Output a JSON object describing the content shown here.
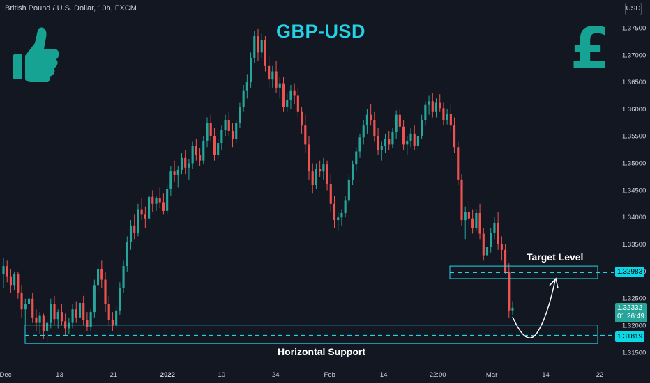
{
  "header": {
    "symbol": "British Pound / U.S. Dollar, 10h, FXCM",
    "currency": "USD"
  },
  "title": "GBP-USD",
  "colors": {
    "background": "#131722",
    "up": "#26a69a",
    "down": "#ef5350",
    "accent": "#22d3e6",
    "logo": "#16a394",
    "arrow": "#ffffff"
  },
  "icons": {
    "thumb": "thumbs-up-icon",
    "pound": "pound-sign-icon"
  },
  "logo_text": "£",
  "annotations": {
    "target_label": "Target Level",
    "support_label": "Horizontal Support"
  },
  "price_tags": {
    "target": "1.32983",
    "support": "1.31819",
    "current": "1.32332",
    "countdown": "01:26:49"
  },
  "chart_data": {
    "type": "candlestick",
    "timeframe": "10h",
    "y_ticks": [
      "1.37500",
      "1.37000",
      "1.36500",
      "1.36000",
      "1.35500",
      "1.35000",
      "1.34500",
      "1.34000",
      "1.33500",
      "1.33000",
      "1.32500",
      "1.32000",
      "1.31500"
    ],
    "ylim": [
      1.3135,
      1.3766
    ],
    "x_ticks": [
      "Dec",
      "13",
      "21",
      "2022",
      "10",
      "24",
      "Feb",
      "14",
      "22:00",
      "Mar",
      "14",
      "22"
    ],
    "levels": [
      {
        "name": "Target Level",
        "price": 1.32983,
        "zone": [
          1.3287,
          1.331
        ]
      },
      {
        "name": "Horizontal Support",
        "price": 1.31819,
        "zone": [
          1.3167,
          1.3201
        ]
      }
    ],
    "current_price": 1.32332,
    "candles": [
      [
        1.3295,
        1.3325,
        1.327,
        1.331
      ],
      [
        1.331,
        1.332,
        1.328,
        1.329
      ],
      [
        1.329,
        1.3305,
        1.326,
        1.3275
      ],
      [
        1.3275,
        1.33,
        1.3265,
        1.3295
      ],
      [
        1.3295,
        1.33,
        1.325,
        1.326
      ],
      [
        1.326,
        1.3275,
        1.3215,
        1.323
      ],
      [
        1.323,
        1.325,
        1.32,
        1.324
      ],
      [
        1.324,
        1.326,
        1.3225,
        1.325
      ],
      [
        1.325,
        1.326,
        1.3205,
        1.3215
      ],
      [
        1.3215,
        1.323,
        1.319,
        1.3205
      ],
      [
        1.3205,
        1.3225,
        1.3185,
        1.3218
      ],
      [
        1.3218,
        1.3222,
        1.3175,
        1.319
      ],
      [
        1.319,
        1.321,
        1.317,
        1.3205
      ],
      [
        1.3205,
        1.325,
        1.3195,
        1.324
      ],
      [
        1.324,
        1.3255,
        1.32,
        1.3212
      ],
      [
        1.3212,
        1.323,
        1.3195,
        1.3225
      ],
      [
        1.3225,
        1.324,
        1.32,
        1.3208
      ],
      [
        1.3208,
        1.3222,
        1.3182,
        1.3195
      ],
      [
        1.3195,
        1.3215,
        1.3185,
        1.3205
      ],
      [
        1.3205,
        1.324,
        1.3195,
        1.323
      ],
      [
        1.323,
        1.3245,
        1.3205,
        1.3215
      ],
      [
        1.3215,
        1.325,
        1.3205,
        1.3242
      ],
      [
        1.3242,
        1.3255,
        1.32,
        1.321
      ],
      [
        1.321,
        1.3225,
        1.319,
        1.3198
      ],
      [
        1.3198,
        1.323,
        1.319,
        1.3225
      ],
      [
        1.3225,
        1.3285,
        1.3215,
        1.3275
      ],
      [
        1.3275,
        1.3315,
        1.326,
        1.3305
      ],
      [
        1.3305,
        1.332,
        1.327,
        1.3285
      ],
      [
        1.3285,
        1.33,
        1.3225,
        1.324
      ],
      [
        1.324,
        1.3255,
        1.32,
        1.321
      ],
      [
        1.321,
        1.3225,
        1.319,
        1.32
      ],
      [
        1.32,
        1.3235,
        1.3195,
        1.3228
      ],
      [
        1.3228,
        1.328,
        1.322,
        1.327
      ],
      [
        1.327,
        1.332,
        1.326,
        1.331
      ],
      [
        1.331,
        1.3365,
        1.33,
        1.3355
      ],
      [
        1.3355,
        1.3395,
        1.334,
        1.3385
      ],
      [
        1.3385,
        1.3405,
        1.336,
        1.3372
      ],
      [
        1.3372,
        1.3425,
        1.3365,
        1.3415
      ],
      [
        1.3415,
        1.3435,
        1.3395,
        1.3405
      ],
      [
        1.3405,
        1.342,
        1.338,
        1.3398
      ],
      [
        1.3398,
        1.3445,
        1.339,
        1.3438
      ],
      [
        1.3438,
        1.345,
        1.341,
        1.3425
      ],
      [
        1.3425,
        1.344,
        1.3412,
        1.3435
      ],
      [
        1.3435,
        1.3455,
        1.3418,
        1.3428
      ],
      [
        1.3428,
        1.3445,
        1.3405,
        1.3412
      ],
      [
        1.3412,
        1.346,
        1.3405,
        1.3452
      ],
      [
        1.3452,
        1.3495,
        1.344,
        1.3485
      ],
      [
        1.3485,
        1.3505,
        1.3465,
        1.3478
      ],
      [
        1.3478,
        1.3495,
        1.3455,
        1.3488
      ],
      [
        1.3488,
        1.352,
        1.348,
        1.351
      ],
      [
        1.351,
        1.3525,
        1.348,
        1.3492
      ],
      [
        1.3492,
        1.3508,
        1.347,
        1.35
      ],
      [
        1.35,
        1.354,
        1.349,
        1.3532
      ],
      [
        1.3532,
        1.3545,
        1.3505,
        1.3515
      ],
      [
        1.3515,
        1.3528,
        1.3495,
        1.3505
      ],
      [
        1.3505,
        1.355,
        1.3498,
        1.3542
      ],
      [
        1.3542,
        1.3585,
        1.353,
        1.3575
      ],
      [
        1.3575,
        1.359,
        1.354,
        1.355
      ],
      [
        1.355,
        1.3565,
        1.3505,
        1.3515
      ],
      [
        1.3515,
        1.3545,
        1.3508,
        1.3538
      ],
      [
        1.3538,
        1.357,
        1.3525,
        1.3562
      ],
      [
        1.3562,
        1.359,
        1.355,
        1.358
      ],
      [
        1.358,
        1.3595,
        1.355,
        1.356
      ],
      [
        1.356,
        1.3575,
        1.353,
        1.3545
      ],
      [
        1.3545,
        1.358,
        1.3538,
        1.3575
      ],
      [
        1.3575,
        1.3612,
        1.3565,
        1.3605
      ],
      [
        1.3605,
        1.3645,
        1.3595,
        1.3635
      ],
      [
        1.3635,
        1.3665,
        1.362,
        1.365
      ],
      [
        1.365,
        1.3705,
        1.364,
        1.3695
      ],
      [
        1.3695,
        1.3745,
        1.3685,
        1.3735
      ],
      [
        1.3735,
        1.3748,
        1.369,
        1.3705
      ],
      [
        1.3705,
        1.374,
        1.3695,
        1.3728
      ],
      [
        1.3728,
        1.3735,
        1.367,
        1.368
      ],
      [
        1.368,
        1.37,
        1.364,
        1.3655
      ],
      [
        1.3655,
        1.368,
        1.364,
        1.367
      ],
      [
        1.367,
        1.369,
        1.363,
        1.364
      ],
      [
        1.364,
        1.366,
        1.362,
        1.3648
      ],
      [
        1.3648,
        1.366,
        1.3595,
        1.3605
      ],
      [
        1.3605,
        1.363,
        1.3595,
        1.3618
      ],
      [
        1.3618,
        1.3645,
        1.36,
        1.3635
      ],
      [
        1.3635,
        1.3648,
        1.361,
        1.3625
      ],
      [
        1.3625,
        1.364,
        1.3585,
        1.3595
      ],
      [
        1.3595,
        1.3605,
        1.3555,
        1.357
      ],
      [
        1.357,
        1.359,
        1.352,
        1.3535
      ],
      [
        1.3535,
        1.355,
        1.347,
        1.3485
      ],
      [
        1.3485,
        1.35,
        1.3445,
        1.346
      ],
      [
        1.346,
        1.35,
        1.3452,
        1.349
      ],
      [
        1.349,
        1.3505,
        1.3475,
        1.3485
      ],
      [
        1.3485,
        1.351,
        1.347,
        1.3498
      ],
      [
        1.3498,
        1.3505,
        1.345,
        1.3462
      ],
      [
        1.3462,
        1.348,
        1.341,
        1.3425
      ],
      [
        1.3425,
        1.344,
        1.338,
        1.3395
      ],
      [
        1.3395,
        1.341,
        1.3375,
        1.34
      ],
      [
        1.34,
        1.3415,
        1.3385,
        1.3408
      ],
      [
        1.3408,
        1.344,
        1.34,
        1.3432
      ],
      [
        1.3432,
        1.348,
        1.3425,
        1.347
      ],
      [
        1.347,
        1.3505,
        1.346,
        1.3498
      ],
      [
        1.3498,
        1.353,
        1.3485,
        1.3522
      ],
      [
        1.3522,
        1.3555,
        1.351,
        1.3548
      ],
      [
        1.3548,
        1.358,
        1.3535,
        1.357
      ],
      [
        1.357,
        1.36,
        1.3555,
        1.359
      ],
      [
        1.359,
        1.361,
        1.357,
        1.358
      ],
      [
        1.358,
        1.3595,
        1.354,
        1.355
      ],
      [
        1.355,
        1.3565,
        1.3515,
        1.3525
      ],
      [
        1.3525,
        1.354,
        1.3505,
        1.3532
      ],
      [
        1.3532,
        1.3555,
        1.352,
        1.3545
      ],
      [
        1.3545,
        1.356,
        1.3525,
        1.3535
      ],
      [
        1.3535,
        1.3565,
        1.3528,
        1.3558
      ],
      [
        1.3558,
        1.3598,
        1.3545,
        1.359
      ],
      [
        1.359,
        1.36,
        1.356,
        1.3568
      ],
      [
        1.3568,
        1.358,
        1.3525,
        1.3535
      ],
      [
        1.3535,
        1.355,
        1.3515,
        1.3542
      ],
      [
        1.3542,
        1.3565,
        1.353,
        1.3555
      ],
      [
        1.3555,
        1.357,
        1.3525,
        1.3532
      ],
      [
        1.3532,
        1.3555,
        1.3525,
        1.355
      ],
      [
        1.355,
        1.359,
        1.3545,
        1.358
      ],
      [
        1.358,
        1.3615,
        1.357,
        1.3608
      ],
      [
        1.3608,
        1.3625,
        1.359,
        1.3615
      ],
      [
        1.3615,
        1.363,
        1.3585,
        1.3595
      ],
      [
        1.3595,
        1.362,
        1.3585,
        1.3612
      ],
      [
        1.3612,
        1.3628,
        1.3595,
        1.3602
      ],
      [
        1.3602,
        1.3612,
        1.357,
        1.358
      ],
      [
        1.358,
        1.36,
        1.3572,
        1.3592
      ],
      [
        1.3592,
        1.361,
        1.356,
        1.357
      ],
      [
        1.357,
        1.3585,
        1.352,
        1.353
      ],
      [
        1.353,
        1.354,
        1.346,
        1.347
      ],
      [
        1.347,
        1.348,
        1.3385,
        1.3395
      ],
      [
        1.3395,
        1.342,
        1.336,
        1.341
      ],
      [
        1.341,
        1.343,
        1.3385,
        1.3398
      ],
      [
        1.3398,
        1.3415,
        1.337,
        1.338
      ],
      [
        1.338,
        1.3415,
        1.3375,
        1.3408
      ],
      [
        1.3408,
        1.3425,
        1.336,
        1.337
      ],
      [
        1.337,
        1.338,
        1.332,
        1.333
      ],
      [
        1.333,
        1.335,
        1.33,
        1.3345
      ],
      [
        1.3345,
        1.338,
        1.3335,
        1.3372
      ],
      [
        1.3372,
        1.34,
        1.336,
        1.339
      ],
      [
        1.339,
        1.341,
        1.334,
        1.335
      ],
      [
        1.335,
        1.3365,
        1.332,
        1.334
      ],
      [
        1.334,
        1.335,
        1.3295,
        1.33
      ],
      [
        1.33,
        1.3315,
        1.3215,
        1.3228
      ],
      [
        1.3228,
        1.3245,
        1.322,
        1.3233
      ]
    ]
  }
}
